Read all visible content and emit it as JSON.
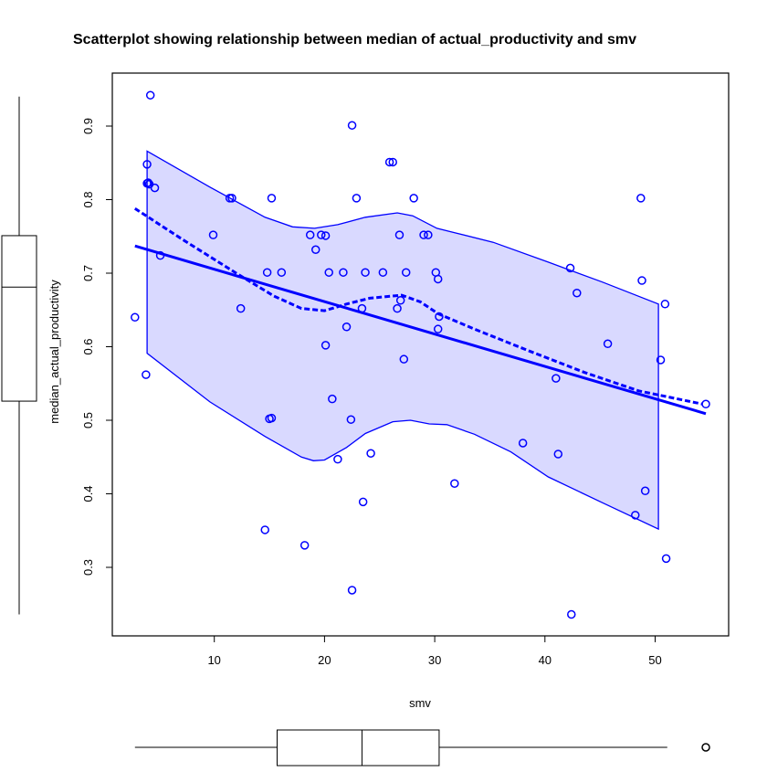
{
  "chart_data": {
    "type": "scatter",
    "title": "Scatterplot showing relationship between median of actual_productivity and smv",
    "xlabel": "smv",
    "ylabel": "median_actual_productivity",
    "xlim": [
      1.5,
      56.5
    ],
    "ylim": [
      0.21,
      0.975
    ],
    "xticks": [
      10,
      20,
      30,
      40,
      50
    ],
    "yticks": [
      0.3,
      0.4,
      0.5,
      0.6,
      0.7,
      0.8,
      0.9
    ],
    "grid": false,
    "colors": {
      "points": "#0000ff",
      "band": "#d9d9ff",
      "axes": "#000000"
    },
    "points": [
      [
        2.8,
        0.64
      ],
      [
        3.9,
        0.848
      ],
      [
        3.9,
        0.822
      ],
      [
        4.0,
        0.823
      ],
      [
        4.1,
        0.821
      ],
      [
        4.2,
        0.942
      ],
      [
        4.6,
        0.816
      ],
      [
        5.1,
        0.724
      ],
      [
        3.8,
        0.562
      ],
      [
        9.9,
        0.752
      ],
      [
        11.4,
        0.802
      ],
      [
        11.6,
        0.802
      ],
      [
        12.4,
        0.652
      ],
      [
        14.6,
        0.351
      ],
      [
        14.8,
        0.701
      ],
      [
        15.2,
        0.802
      ],
      [
        15.0,
        0.502
      ],
      [
        15.2,
        0.503
      ],
      [
        16.1,
        0.701
      ],
      [
        18.2,
        0.33
      ],
      [
        18.7,
        0.752
      ],
      [
        19.2,
        0.732
      ],
      [
        19.7,
        0.752
      ],
      [
        20.1,
        0.751
      ],
      [
        20.1,
        0.602
      ],
      [
        20.4,
        0.701
      ],
      [
        20.7,
        0.529
      ],
      [
        21.2,
        0.447
      ],
      [
        21.7,
        0.701
      ],
      [
        22.0,
        0.627
      ],
      [
        22.4,
        0.501
      ],
      [
        22.5,
        0.901
      ],
      [
        22.5,
        0.269
      ],
      [
        22.9,
        0.802
      ],
      [
        23.4,
        0.652
      ],
      [
        23.5,
        0.389
      ],
      [
        23.7,
        0.701
      ],
      [
        24.2,
        0.455
      ],
      [
        25.3,
        0.701
      ],
      [
        25.9,
        0.851
      ],
      [
        26.2,
        0.851
      ],
      [
        26.6,
        0.652
      ],
      [
        26.8,
        0.752
      ],
      [
        26.9,
        0.663
      ],
      [
        27.2,
        0.583
      ],
      [
        27.4,
        0.701
      ],
      [
        28.1,
        0.802
      ],
      [
        29.0,
        0.752
      ],
      [
        29.4,
        0.752
      ],
      [
        30.1,
        0.701
      ],
      [
        30.3,
        0.692
      ],
      [
        30.4,
        0.641
      ],
      [
        30.3,
        0.624
      ],
      [
        31.8,
        0.414
      ],
      [
        38.0,
        0.469
      ],
      [
        41.0,
        0.557
      ],
      [
        41.2,
        0.454
      ],
      [
        42.3,
        0.707
      ],
      [
        42.4,
        0.236
      ],
      [
        42.9,
        0.673
      ],
      [
        45.7,
        0.604
      ],
      [
        48.2,
        0.371
      ],
      [
        48.7,
        0.802
      ],
      [
        48.8,
        0.69
      ],
      [
        49.1,
        0.404
      ],
      [
        50.5,
        0.582
      ],
      [
        50.9,
        0.658
      ],
      [
        51.0,
        0.312
      ],
      [
        54.6,
        0.522
      ]
    ],
    "regression_line": [
      [
        2.8,
        0.737
      ],
      [
        54.6,
        0.509
      ]
    ],
    "smooth_line": [
      [
        2.8,
        0.788
      ],
      [
        7.1,
        0.746
      ],
      [
        12.1,
        0.699
      ],
      [
        15.4,
        0.669
      ],
      [
        17.9,
        0.652
      ],
      [
        20.0,
        0.649
      ],
      [
        22.0,
        0.658
      ],
      [
        24.1,
        0.666
      ],
      [
        27.0,
        0.67
      ],
      [
        28.7,
        0.661
      ],
      [
        30.3,
        0.645
      ],
      [
        33.6,
        0.624
      ],
      [
        38.6,
        0.594
      ],
      [
        43.6,
        0.565
      ],
      [
        48.5,
        0.54
      ],
      [
        54.3,
        0.522
      ]
    ],
    "band_upper": [
      [
        3.9,
        0.866
      ],
      [
        9.6,
        0.817
      ],
      [
        14.6,
        0.776
      ],
      [
        17.1,
        0.763
      ],
      [
        19.1,
        0.761
      ],
      [
        21.2,
        0.766
      ],
      [
        23.7,
        0.776
      ],
      [
        26.6,
        0.782
      ],
      [
        28.0,
        0.778
      ],
      [
        30.2,
        0.761
      ],
      [
        35.3,
        0.742
      ],
      [
        40.3,
        0.715
      ],
      [
        45.2,
        0.688
      ],
      [
        50.3,
        0.658
      ]
    ],
    "band_lower": [
      [
        3.9,
        0.591
      ],
      [
        9.6,
        0.525
      ],
      [
        14.6,
        0.478
      ],
      [
        17.9,
        0.45
      ],
      [
        19.0,
        0.445
      ],
      [
        20.0,
        0.446
      ],
      [
        22.0,
        0.463
      ],
      [
        23.7,
        0.482
      ],
      [
        26.2,
        0.498
      ],
      [
        27.8,
        0.5
      ],
      [
        29.5,
        0.495
      ],
      [
        31.1,
        0.494
      ],
      [
        33.6,
        0.481
      ],
      [
        36.9,
        0.457
      ],
      [
        40.3,
        0.423
      ],
      [
        45.2,
        0.388
      ],
      [
        50.3,
        0.352
      ]
    ],
    "y_boxplot": {
      "whisker_low": 0.236,
      "q1": 0.526,
      "median": 0.681,
      "q3": 0.751,
      "whisker_high": 0.94
    },
    "x_boxplot": {
      "whisker_low": 2.8,
      "q1": 15.7,
      "median": 23.4,
      "q3": 30.4,
      "whisker_high": 51.1,
      "outliers": [
        54.6
      ]
    }
  }
}
